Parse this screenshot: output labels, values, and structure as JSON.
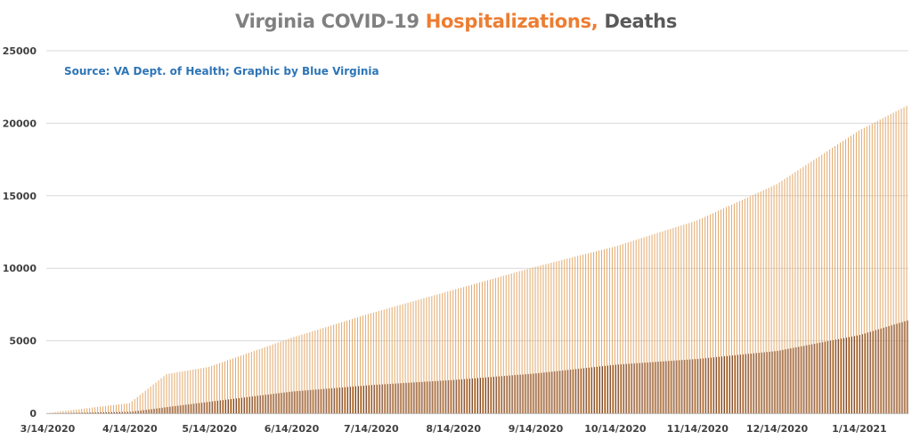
{
  "chart_data": {
    "type": "bar",
    "title": {
      "part1": "Virginia COVID-19 ",
      "part2": "Hospitalizations,",
      "part3": " Deaths"
    },
    "source_note": "Source: VA Dept. of Health; Graphic by Blue Virginia",
    "xlabel": "",
    "ylabel": "",
    "ylim": [
      0,
      25000
    ],
    "y_ticks": [
      "0",
      "5000",
      "10000",
      "15000",
      "20000",
      "25000"
    ],
    "x_tick_labels": [
      "3/14/2020",
      "4/14/2020",
      "5/14/2020",
      "6/14/2020",
      "7/14/2020",
      "8/14/2020",
      "9/14/2020",
      "10/14/2020",
      "11/14/2020",
      "12/14/2020",
      "1/14/2021"
    ],
    "grid": true,
    "colors": {
      "hospitalizations": "#e2a96b",
      "deaths": "#7a4b36",
      "grid": "#d9d9d9"
    },
    "series": [
      {
        "key": "hospitalizations",
        "x": [
          "3/14/2020",
          "4/14/2020",
          "4/28/2020",
          "5/14/2020",
          "6/14/2020",
          "7/14/2020",
          "8/14/2020",
          "9/14/2020",
          "10/14/2020",
          "11/14/2020",
          "12/14/2020",
          "1/14/2021",
          "2/1/2021"
        ],
        "values": [
          20,
          700,
          2700,
          3200,
          5200,
          6900,
          8500,
          10100,
          11500,
          13300,
          15800,
          19500,
          21200
        ]
      },
      {
        "key": "deaths",
        "x": [
          "3/14/2020",
          "4/14/2020",
          "5/14/2020",
          "6/14/2020",
          "7/14/2020",
          "8/14/2020",
          "9/14/2020",
          "10/14/2020",
          "11/14/2020",
          "12/14/2020",
          "1/14/2021",
          "2/1/2021"
        ],
        "values": [
          0,
          100,
          800,
          1500,
          1950,
          2300,
          2750,
          3350,
          3750,
          4300,
          5400,
          6400
        ]
      }
    ]
  }
}
